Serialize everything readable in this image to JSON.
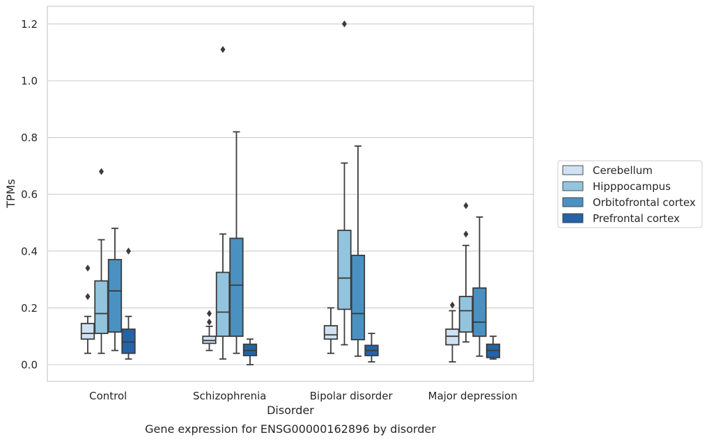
{
  "chart_data": {
    "type": "box",
    "caption": "Gene expression for ENSG00000162896 by disorder",
    "xlabel": "Disorder",
    "ylabel": "TPMs",
    "ylim": [
      -0.06,
      1.26
    ],
    "yticks": [
      0.0,
      0.2,
      0.4,
      0.6,
      0.8,
      1.0,
      1.2
    ],
    "ytick_labels": [
      "0.0",
      "0.2",
      "0.4",
      "0.6",
      "0.8",
      "1.0",
      "1.2"
    ],
    "grid": "horizontal",
    "legend_position": "right",
    "categories": [
      "Control",
      "Schizophrenia",
      "Bipolar disorder",
      "Major depression"
    ],
    "series": [
      {
        "name": "Cerebellum",
        "color": "#cfe1f2",
        "boxes": [
          {
            "whislo": 0.04,
            "q1": 0.09,
            "med": 0.11,
            "q3": 0.145,
            "whishi": 0.17,
            "fliers": [
              0.24,
              0.34
            ]
          },
          {
            "whislo": 0.05,
            "q1": 0.075,
            "med": 0.085,
            "q3": 0.1,
            "whishi": 0.135,
            "fliers": [
              0.15,
              0.18
            ]
          },
          {
            "whislo": 0.04,
            "q1": 0.09,
            "med": 0.105,
            "q3": 0.137,
            "whishi": 0.2,
            "fliers": []
          },
          {
            "whislo": 0.01,
            "q1": 0.07,
            "med": 0.1,
            "q3": 0.125,
            "whishi": 0.19,
            "fliers": [
              0.21
            ]
          }
        ]
      },
      {
        "name": "Hipppocampus",
        "color": "#93c4de",
        "boxes": [
          {
            "whislo": 0.04,
            "q1": 0.11,
            "med": 0.18,
            "q3": 0.295,
            "whishi": 0.44,
            "fliers": [
              0.68
            ]
          },
          {
            "whislo": 0.02,
            "q1": 0.1,
            "med": 0.185,
            "q3": 0.325,
            "whishi": 0.46,
            "fliers": [
              1.11
            ]
          },
          {
            "whislo": 0.07,
            "q1": 0.195,
            "med": 0.305,
            "q3": 0.473,
            "whishi": 0.71,
            "fliers": [
              1.2
            ]
          },
          {
            "whislo": 0.08,
            "q1": 0.115,
            "med": 0.19,
            "q3": 0.24,
            "whishi": 0.42,
            "fliers": [
              0.46,
              0.56
            ]
          }
        ]
      },
      {
        "name": "Orbitofrontal cortex",
        "color": "#4a91c2",
        "boxes": [
          {
            "whislo": 0.05,
            "q1": 0.115,
            "med": 0.26,
            "q3": 0.37,
            "whishi": 0.48,
            "fliers": []
          },
          {
            "whislo": 0.04,
            "q1": 0.1,
            "med": 0.28,
            "q3": 0.445,
            "whishi": 0.82,
            "fliers": []
          },
          {
            "whislo": 0.03,
            "q1": 0.088,
            "med": 0.18,
            "q3": 0.385,
            "whishi": 0.77,
            "fliers": []
          },
          {
            "whislo": 0.03,
            "q1": 0.1,
            "med": 0.15,
            "q3": 0.27,
            "whishi": 0.52,
            "fliers": []
          }
        ]
      },
      {
        "name": "Prefrontal cortex",
        "color": "#2463a6",
        "boxes": [
          {
            "whislo": 0.02,
            "q1": 0.04,
            "med": 0.08,
            "q3": 0.125,
            "whishi": 0.17,
            "fliers": [
              0.4
            ]
          },
          {
            "whislo": 0.0,
            "q1": 0.032,
            "med": 0.05,
            "q3": 0.072,
            "whishi": 0.09,
            "fliers": []
          },
          {
            "whislo": 0.01,
            "q1": 0.032,
            "med": 0.05,
            "q3": 0.068,
            "whishi": 0.11,
            "fliers": []
          },
          {
            "whislo": 0.02,
            "q1": 0.025,
            "med": 0.05,
            "q3": 0.072,
            "whishi": 0.1,
            "fliers": []
          }
        ]
      }
    ]
  }
}
